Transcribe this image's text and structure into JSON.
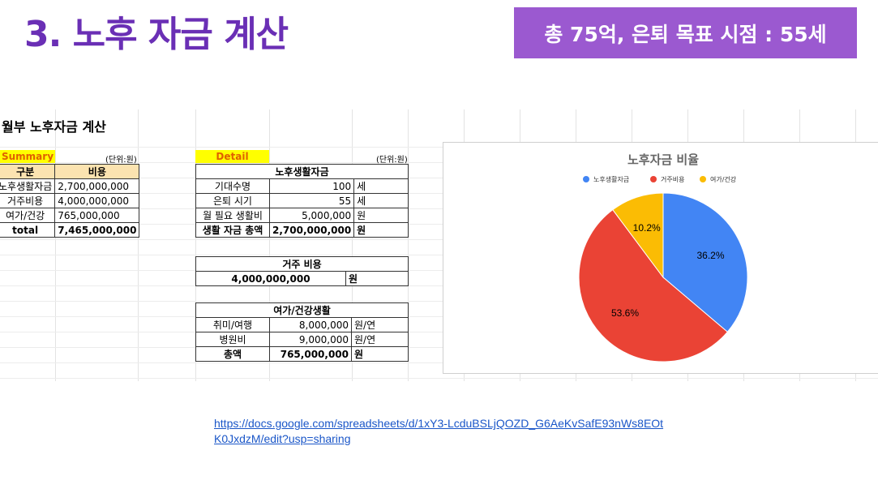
{
  "slide": {
    "title": "3. 노후 자금 계산",
    "badge": "총 75억, 은퇴 목표 시점 : 55세"
  },
  "sheet": {
    "title": "월부 노후자금 계산",
    "summary": {
      "tag": "Summary",
      "unit": "(단위:원)",
      "header": [
        "구분",
        "비용"
      ],
      "rows": [
        [
          "노후생활자금",
          "2,700,000,000"
        ],
        [
          "거주비용",
          "4,000,000,000"
        ],
        [
          "여가/건강",
          "765,000,000"
        ],
        [
          "total",
          "7,465,000,000"
        ]
      ]
    },
    "detail": {
      "tag": "Detail",
      "unit": "(단위:원)",
      "living": {
        "header": "노후생활자금",
        "rows": [
          [
            "기대수명",
            "100",
            "세"
          ],
          [
            "은퇴 시기",
            "55",
            "세"
          ],
          [
            "월 필요 생활비",
            "5,000,000",
            "원"
          ],
          [
            "생활 자금 총액",
            "2,700,000,000",
            "원"
          ]
        ]
      },
      "housing": {
        "header": "거주 비용",
        "row": [
          "4,000,000,000",
          "원"
        ]
      },
      "leisure": {
        "header": "여가/건강생활",
        "rows": [
          [
            "취미/여행",
            "8,000,000",
            "원/연"
          ],
          [
            "병원비",
            "9,000,000",
            "원/연"
          ],
          [
            "총액",
            "765,000,000",
            "원"
          ]
        ]
      }
    }
  },
  "chart_data": {
    "type": "pie",
    "title": "노후자금 비율",
    "legend_position": "top",
    "categories": [
      "노후생활자금",
      "거주비용",
      "여가/건강"
    ],
    "values": [
      36.2,
      53.6,
      10.2
    ],
    "labels": [
      "36.2%",
      "53.6%",
      "10.2%"
    ],
    "colors": [
      "#4285f4",
      "#ea4335",
      "#fbbc04"
    ]
  },
  "link": {
    "text": "https://docs.google.com/spreadsheets/d/1xY3-LcduBSLjQOZD_G6AeKvSafE93nWs8EOtK0JxdzM/edit?usp=sharing"
  }
}
